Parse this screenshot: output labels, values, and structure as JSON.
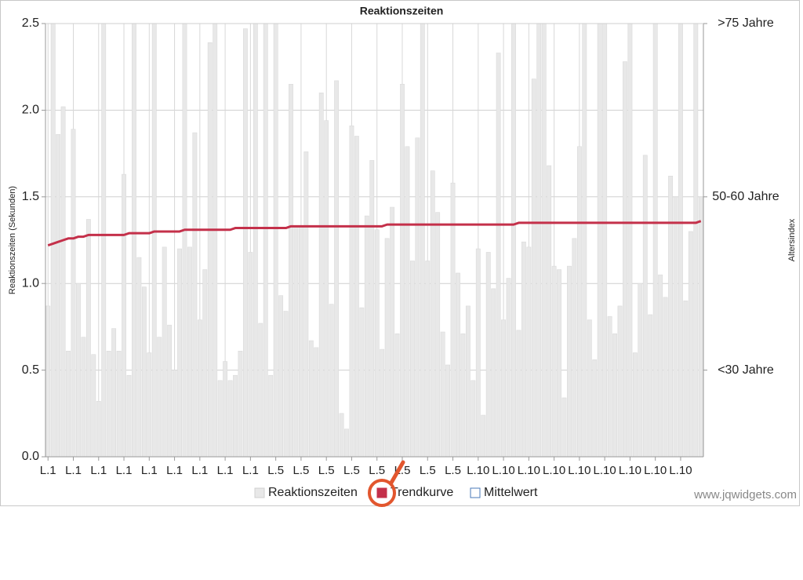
{
  "chart_data": {
    "type": "bar",
    "title": "Reaktionszeiten",
    "y_label": "Reaktionszeiten (Sekunden)",
    "y2_label": "Altersindex",
    "watermark": "www.jqwidgets.com",
    "categories": [
      "L.1",
      null,
      null,
      null,
      null,
      "L.1",
      null,
      null,
      null,
      null,
      "L.1",
      null,
      null,
      null,
      null,
      "L.1",
      null,
      null,
      null,
      null,
      "L.1",
      null,
      null,
      null,
      null,
      "L.1",
      null,
      null,
      null,
      null,
      "L.1",
      null,
      null,
      null,
      null,
      "L.1",
      null,
      null,
      null,
      null,
      "L.1",
      null,
      null,
      null,
      null,
      "L.5",
      null,
      null,
      null,
      null,
      "L.5",
      null,
      null,
      null,
      null,
      "L.5",
      null,
      null,
      null,
      null,
      "L.5",
      null,
      null,
      null,
      null,
      "L.5",
      null,
      null,
      null,
      null,
      "L.5",
      null,
      null,
      null,
      null,
      "L.5",
      null,
      null,
      null,
      null,
      "L.5",
      null,
      null,
      null,
      null,
      "L.10",
      null,
      null,
      null,
      null,
      "L.10",
      null,
      null,
      null,
      null,
      "L.10",
      null,
      null,
      null,
      null,
      "L.10",
      null,
      null,
      null,
      null,
      "L.10",
      null,
      null,
      null,
      null,
      "L.10",
      null,
      null,
      null,
      null,
      "L.10",
      null,
      null,
      null,
      null,
      "L.10",
      null,
      null,
      null,
      null,
      "L.10",
      null,
      null,
      null,
      null
    ],
    "series": [
      {
        "name": "Reaktionszeiten",
        "type": "bar",
        "color": "#e8e8e8",
        "values": [
          0.87,
          2.5,
          1.86,
          2.02,
          0.61,
          1.89,
          1.0,
          0.69,
          1.37,
          0.59,
          0.32,
          2.5,
          0.61,
          0.74,
          0.61,
          1.63,
          0.47,
          2.5,
          1.15,
          0.98,
          0.6,
          2.5,
          0.69,
          1.21,
          0.76,
          0.5,
          1.2,
          2.5,
          1.21,
          1.87,
          0.79,
          1.08,
          2.39,
          2.5,
          0.44,
          0.55,
          0.44,
          0.47,
          0.61,
          2.47,
          1.18,
          2.5,
          0.77,
          2.5,
          0.47,
          2.5,
          0.93,
          0.84,
          2.15,
          1.33,
          1.33,
          1.76,
          0.67,
          0.63,
          2.1,
          1.94,
          0.88,
          2.17,
          0.25,
          0.16,
          1.91,
          1.85,
          0.86,
          1.39,
          1.71,
          1.31,
          0.62,
          1.26,
          1.44,
          0.71,
          2.15,
          1.79,
          1.13,
          1.84,
          2.5,
          1.13,
          1.65,
          1.41,
          0.72,
          0.53,
          1.58,
          1.06,
          0.71,
          0.87,
          0.44,
          1.2,
          0.24,
          1.18,
          0.97,
          2.33,
          0.79,
          1.03,
          2.5,
          0.73,
          1.24,
          1.21,
          2.18,
          2.5,
          2.5,
          1.68,
          1.1,
          1.08,
          0.34,
          1.1,
          1.26,
          1.79,
          2.5,
          0.79,
          0.56,
          2.5,
          2.5,
          0.81,
          0.71,
          0.87,
          2.28,
          2.5,
          0.6,
          1.0,
          1.74,
          0.82,
          2.5,
          1.05,
          0.92,
          1.62,
          1.5,
          2.5,
          0.9,
          1.3,
          2.5,
          1.5
        ]
      },
      {
        "name": "Trendkurve",
        "type": "line",
        "color": "#c4304a",
        "values": [
          1.22,
          1.23,
          1.24,
          1.25,
          1.26,
          1.26,
          1.27,
          1.27,
          1.28,
          1.28,
          1.28,
          1.28,
          1.28,
          1.28,
          1.28,
          1.28,
          1.29,
          1.29,
          1.29,
          1.29,
          1.29,
          1.3,
          1.3,
          1.3,
          1.3,
          1.3,
          1.3,
          1.31,
          1.31,
          1.31,
          1.31,
          1.31,
          1.31,
          1.31,
          1.31,
          1.31,
          1.31,
          1.32,
          1.32,
          1.32,
          1.32,
          1.32,
          1.32,
          1.32,
          1.32,
          1.32,
          1.32,
          1.32,
          1.33,
          1.33,
          1.33,
          1.33,
          1.33,
          1.33,
          1.33,
          1.33,
          1.33,
          1.33,
          1.33,
          1.33,
          1.33,
          1.33,
          1.33,
          1.33,
          1.33,
          1.33,
          1.33,
          1.34,
          1.34,
          1.34,
          1.34,
          1.34,
          1.34,
          1.34,
          1.34,
          1.34,
          1.34,
          1.34,
          1.34,
          1.34,
          1.34,
          1.34,
          1.34,
          1.34,
          1.34,
          1.34,
          1.34,
          1.34,
          1.34,
          1.34,
          1.34,
          1.34,
          1.34,
          1.35,
          1.35,
          1.35,
          1.35,
          1.35,
          1.35,
          1.35,
          1.35,
          1.35,
          1.35,
          1.35,
          1.35,
          1.35,
          1.35,
          1.35,
          1.35,
          1.35,
          1.35,
          1.35,
          1.35,
          1.35,
          1.35,
          1.35,
          1.35,
          1.35,
          1.35,
          1.35,
          1.35,
          1.35,
          1.35,
          1.35,
          1.35,
          1.35,
          1.35,
          1.35,
          1.35,
          1.36
        ]
      },
      {
        "name": "Mittelwert",
        "type": "line",
        "color": "#4a7ab8",
        "values": [
          null,
          null,
          null,
          null,
          null,
          null,
          null,
          null,
          null,
          null,
          null,
          null,
          null,
          null,
          null,
          null,
          null,
          null,
          null,
          null,
          null,
          null,
          null,
          null,
          null,
          null,
          null,
          null,
          null,
          null,
          null,
          null,
          null,
          null,
          null,
          null,
          null,
          null,
          null,
          null,
          null,
          null,
          null,
          null,
          null,
          null,
          null,
          null,
          null,
          null,
          null,
          null,
          null,
          null,
          null,
          null,
          null,
          null,
          null,
          null,
          null,
          null,
          null,
          null,
          null,
          null,
          null,
          null,
          null,
          null,
          null,
          null,
          null,
          null,
          null,
          null,
          null,
          null,
          null,
          null,
          null,
          null,
          null,
          null,
          null,
          null,
          null,
          null,
          null,
          null,
          null,
          null,
          null,
          null,
          null,
          null,
          null,
          null,
          null,
          null,
          null,
          null,
          null,
          null,
          null,
          null,
          null,
          null,
          null,
          null,
          null,
          null,
          null,
          null,
          null,
          null,
          null,
          null,
          null,
          null,
          null,
          null,
          null,
          null,
          null,
          null,
          null,
          null,
          null,
          null
        ]
      }
    ],
    "ylim": [
      0,
      2.5
    ],
    "yticks": [
      {
        "value": 0,
        "label": "0.0"
      },
      0.5,
      {
        "value": 1,
        "label": "1.0"
      },
      1.5,
      {
        "value": 2,
        "label": "2.0"
      },
      2.5
    ],
    "y2lim": [
      0,
      2.5
    ],
    "y2ticks": [
      {
        "value": 0.5,
        "label": "<30 Jahre"
      },
      {
        "value": 1.5,
        "label": "50-60 Jahre"
      },
      {
        "value": 2.5,
        "label": ">75 Jahre"
      }
    ],
    "grid": true
  }
}
